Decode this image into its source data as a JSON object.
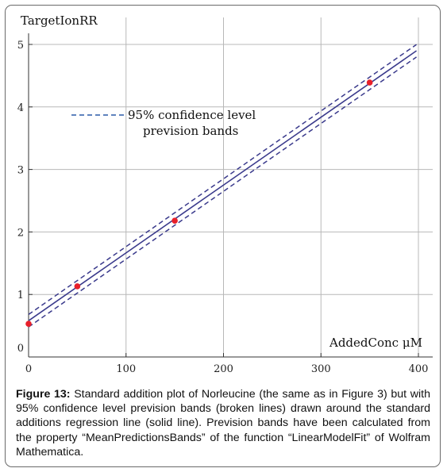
{
  "chart_data": {
    "type": "scatter",
    "xlabel": "AddedConc μM",
    "ylabel": "TargetIonRR",
    "xlim": [
      0,
      400
    ],
    "ylim": [
      0,
      5.2
    ],
    "xticks": [
      0,
      100,
      200,
      300,
      400
    ],
    "yticks": [
      0,
      1,
      2,
      3,
      4,
      5
    ],
    "grid": true,
    "points": [
      {
        "x": 0,
        "y": 0.53
      },
      {
        "x": 50,
        "y": 1.13
      },
      {
        "x": 150,
        "y": 2.18
      },
      {
        "x": 350,
        "y": 4.39
      }
    ],
    "regression_line": {
      "intercept": 0.58,
      "slope": 0.01085
    },
    "confidence_band_offset": 0.1,
    "legend": {
      "text": "95% confidence level prevision bands",
      "line1": "95% confidence level",
      "line2": "prevision bands",
      "placement": "upper-left"
    },
    "colors": {
      "points": "#e8202a",
      "line": "#3a3a8c",
      "band": "#3a3a8c",
      "legend_dash": "#2a5aa8",
      "grid": "#b8b8b8"
    }
  },
  "caption": {
    "label": "Figure 13:",
    "text": " Standard addition plot of Norleucine (the same as in Figure 3) but with 95% confidence level prevision bands (broken lines) drawn around the standard additions regression line (solid line). Prevision bands have been calculated from the property “MeanPredictionsBands” of the function “LinearModelFit” of Wolfram Mathematica."
  }
}
